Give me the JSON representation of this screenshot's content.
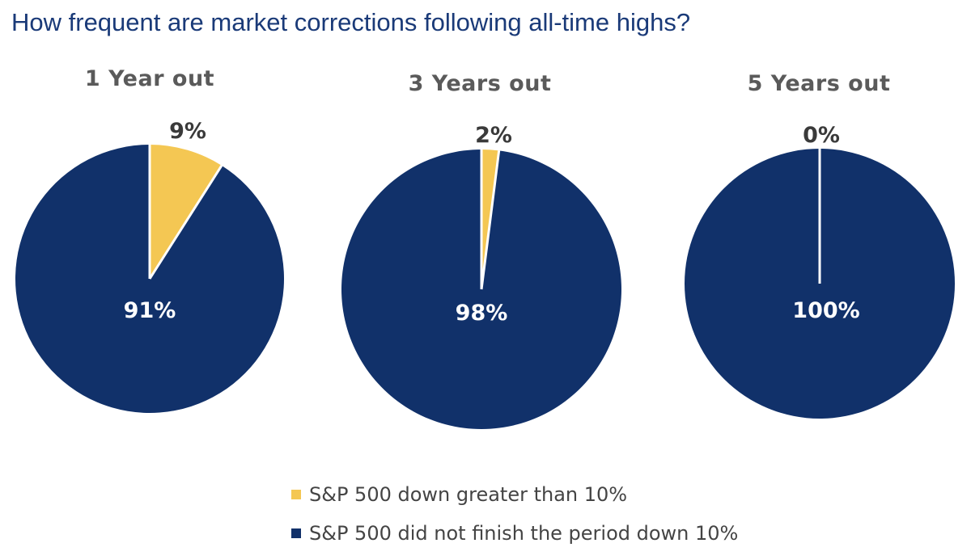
{
  "title": "How frequent are market corrections following all-time highs?",
  "colors": {
    "title": "#1a3a78",
    "down": "#f4c753",
    "not_down": "#11316a",
    "divider": "#ffffff"
  },
  "legend": {
    "items": [
      {
        "label": "S&P 500 down greater than 10%",
        "color": "#f4c753"
      },
      {
        "label": "S&P 500 did not finish the period down 10%",
        "color": "#11316a"
      }
    ]
  },
  "chart_data": [
    {
      "type": "pie",
      "title": "1 Year out",
      "slices": [
        {
          "name": "S&P 500 down greater than 10%",
          "value": 9,
          "label": "9%"
        },
        {
          "name": "S&P 500 did not finish the period down 10%",
          "value": 91,
          "label": "91%"
        }
      ]
    },
    {
      "type": "pie",
      "title": "3 Years out",
      "slices": [
        {
          "name": "S&P 500 down greater than 10%",
          "value": 2,
          "label": "2%"
        },
        {
          "name": "S&P 500 did not finish the period down 10%",
          "value": 98,
          "label": "98%"
        }
      ]
    },
    {
      "type": "pie",
      "title": "5 Years out",
      "slices": [
        {
          "name": "S&P 500 down greater than 10%",
          "value": 0,
          "label": "0%"
        },
        {
          "name": "S&P 500 did not finish the period down 10%",
          "value": 100,
          "label": "100%"
        }
      ]
    }
  ]
}
